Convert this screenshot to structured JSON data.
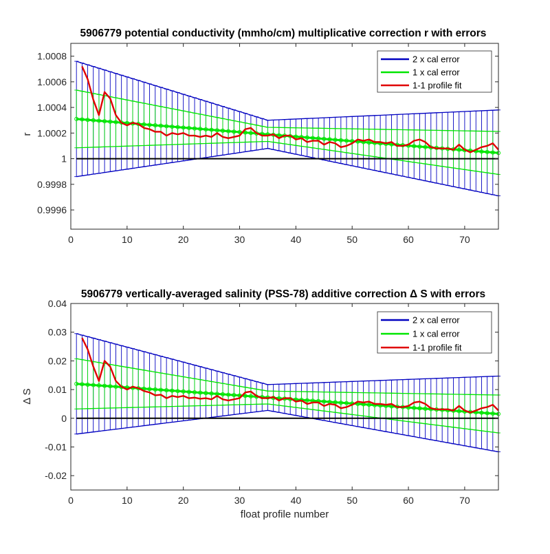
{
  "chart_data": [
    {
      "type": "line",
      "title": "5906779 potential conductivity (mmho/cm) multiplicative correction r with errors",
      "xlabel": "",
      "ylabel": "r",
      "xlim": [
        0,
        76
      ],
      "ylim": [
        0.99945,
        1.0009
      ],
      "x_ticks": [
        0,
        10,
        20,
        30,
        40,
        50,
        60,
        70
      ],
      "x_tick_labels": [
        "0",
        "10",
        "20",
        "30",
        "40",
        "50",
        "60",
        "70"
      ],
      "y_ticks": [
        0.9996,
        0.9998,
        1,
        1.0002,
        1.0004,
        1.0006,
        1.0008
      ],
      "y_tick_labels": [
        "0.9996",
        "0.9998",
        "1",
        "1.0002",
        "1.0004",
        "1.0006",
        "1.0008"
      ],
      "legend_position": "top-right",
      "grid": false,
      "colors": {
        "two_cal": "#0000c0",
        "one_cal": "#00e600",
        "fit": "#e00000",
        "zero": "#000000"
      },
      "series": [
        {
          "name": "2 x cal error",
          "type": "errorbar",
          "x_range": [
            1,
            76
          ],
          "center": {
            "x": [
              1,
              76
            ],
            "y": [
              1.00031,
              1.000045
            ]
          },
          "halfwidth": {
            "x": [
              1,
              35,
              76
            ],
            "y": [
              0.00045,
              0.00011,
              0.000335
            ]
          }
        },
        {
          "name": "1 x cal error",
          "type": "errorbar",
          "x_range": [
            1,
            76
          ],
          "center": {
            "x": [
              1,
              76
            ],
            "y": [
              1.00031,
              1.000045
            ]
          },
          "halfwidth": {
            "x": [
              1,
              35,
              76
            ],
            "y": [
              0.000225,
              5.5e-05,
              0.0001675
            ]
          }
        },
        {
          "name": "1-1 profile fit",
          "type": "line",
          "x": [
            2,
            3,
            4,
            5,
            6,
            7,
            8,
            9,
            10,
            11,
            12,
            13,
            14,
            15,
            16,
            17,
            18,
            19,
            20,
            21,
            22,
            23,
            24,
            25,
            26,
            27,
            28,
            29,
            30,
            31,
            32,
            33,
            34,
            35,
            36,
            37,
            38,
            39,
            40,
            41,
            42,
            43,
            44,
            45,
            46,
            47,
            48,
            49,
            50,
            51,
            52,
            53,
            54,
            55,
            56,
            57,
            58,
            59,
            60,
            61,
            62,
            63,
            64,
            65,
            66,
            67,
            68,
            69,
            70,
            71,
            72,
            73,
            74,
            75,
            76
          ],
          "y": [
            1.00072,
            1.00062,
            1.00046,
            1.00034,
            1.00052,
            1.00047,
            1.00034,
            1.00028,
            1.00026,
            1.00028,
            1.00027,
            1.00024,
            1.00023,
            1.00021,
            1.00021,
            1.00018,
            1.0002,
            1.00019,
            1.0002,
            1.00018,
            1.00018,
            1.00017,
            1.00018,
            1.00017,
            1.0002,
            1.00017,
            1.00016,
            1.00017,
            1.00018,
            1.00023,
            1.00024,
            1.0002,
            1.00018,
            1.00018,
            1.00019,
            1.00016,
            1.00018,
            1.00018,
            1.00015,
            1.00016,
            1.00013,
            1.00014,
            1.00014,
            1.00011,
            1.00013,
            1.00012,
            1.00009,
            1.0001,
            1.00012,
            1.00015,
            1.00014,
            1.00015,
            1.00013,
            1.00013,
            1.00012,
            1.00013,
            1.0001,
            1.0001,
            1.00011,
            1.00014,
            1.00015,
            1.00013,
            1.00009,
            1.00008,
            1.00008,
            1.00008,
            1.00007,
            1.00011,
            1.00007,
            1.00005,
            1.00007,
            1.00009,
            1.0001,
            1.00012,
            1.00007
          ]
        },
        {
          "name": "",
          "type": "zero",
          "x": [
            1,
            76
          ],
          "y": [
            1,
            1
          ]
        }
      ]
    },
    {
      "type": "line",
      "title": "5906779 vertically-averaged salinity (PSS-78) additive correction Δ S with errors",
      "xlabel": "float profile number",
      "ylabel": "Δ S",
      "xlim": [
        0,
        76
      ],
      "ylim": [
        -0.025,
        0.04
      ],
      "x_ticks": [
        0,
        10,
        20,
        30,
        40,
        50,
        60,
        70
      ],
      "x_tick_labels": [
        "0",
        "10",
        "20",
        "30",
        "40",
        "50",
        "60",
        "70"
      ],
      "y_ticks": [
        -0.02,
        -0.01,
        0,
        0.01,
        0.02,
        0.03,
        0.04
      ],
      "y_tick_labels": [
        "-0.02",
        "-0.01",
        "0",
        "0.01",
        "0.02",
        "0.03",
        "0.04"
      ],
      "legend_position": "top-right",
      "grid": false,
      "colors": {
        "two_cal": "#0000c0",
        "one_cal": "#00e600",
        "fit": "#e00000",
        "zero": "#000000"
      },
      "series": [
        {
          "name": "2 x cal error",
          "type": "errorbar",
          "x_range": [
            1,
            76
          ],
          "center": {
            "x": [
              1,
              76
            ],
            "y": [
              0.012,
              0.0015
            ]
          },
          "halfwidth": {
            "x": [
              1,
              35,
              76
            ],
            "y": [
              0.0175,
              0.0045,
              0.0132
            ]
          }
        },
        {
          "name": "1 x cal error",
          "type": "errorbar",
          "x_range": [
            1,
            76
          ],
          "center": {
            "x": [
              1,
              76
            ],
            "y": [
              0.012,
              0.0015
            ]
          },
          "halfwidth": {
            "x": [
              1,
              35,
              76
            ],
            "y": [
              0.00875,
              0.00225,
              0.0066
            ]
          }
        },
        {
          "name": "1-1 profile fit",
          "type": "line",
          "x": [
            2,
            3,
            4,
            5,
            6,
            7,
            8,
            9,
            10,
            11,
            12,
            13,
            14,
            15,
            16,
            17,
            18,
            19,
            20,
            21,
            22,
            23,
            24,
            25,
            26,
            27,
            28,
            29,
            30,
            31,
            32,
            33,
            34,
            35,
            36,
            37,
            38,
            39,
            40,
            41,
            42,
            43,
            44,
            45,
            46,
            47,
            48,
            49,
            50,
            51,
            52,
            53,
            54,
            55,
            56,
            57,
            58,
            59,
            60,
            61,
            62,
            63,
            64,
            65,
            66,
            67,
            68,
            69,
            70,
            71,
            72,
            73,
            74,
            75,
            76
          ],
          "y": [
            0.028,
            0.024,
            0.018,
            0.013,
            0.02,
            0.018,
            0.013,
            0.011,
            0.01,
            0.011,
            0.0105,
            0.0095,
            0.009,
            0.008,
            0.0082,
            0.007,
            0.0078,
            0.0074,
            0.0078,
            0.007,
            0.0072,
            0.0068,
            0.007,
            0.0066,
            0.0078,
            0.0066,
            0.0062,
            0.0066,
            0.007,
            0.009,
            0.0093,
            0.0078,
            0.007,
            0.007,
            0.0074,
            0.0062,
            0.007,
            0.007,
            0.0058,
            0.0062,
            0.005,
            0.0055,
            0.0055,
            0.0043,
            0.005,
            0.0047,
            0.0035,
            0.0039,
            0.0047,
            0.0058,
            0.0055,
            0.0058,
            0.005,
            0.005,
            0.0047,
            0.005,
            0.0039,
            0.0039,
            0.0043,
            0.0055,
            0.0058,
            0.005,
            0.0035,
            0.0031,
            0.0031,
            0.0031,
            0.0027,
            0.0043,
            0.0027,
            0.002,
            0.0027,
            0.0035,
            0.0039,
            0.0047,
            0.0027
          ]
        },
        {
          "name": "",
          "type": "zero",
          "x": [
            1,
            76
          ],
          "y": [
            0,
            0
          ]
        }
      ]
    }
  ]
}
